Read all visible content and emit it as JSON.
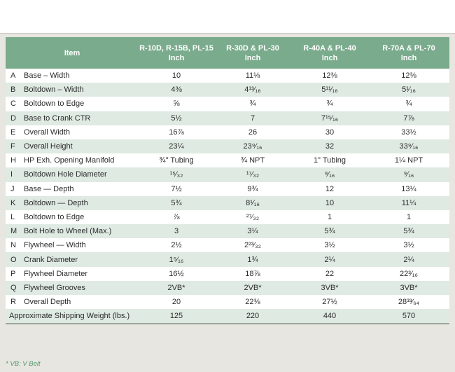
{
  "colors": {
    "header_green": "#7aab8c",
    "stripe_green": "#dfeae2",
    "panel_gray": "#e7e6e0",
    "footnote_green": "#55996e",
    "text_dark": "#2b2b2b",
    "table_bottom_border": "#9aa69c"
  },
  "footnote": "* VB: V Belt",
  "table": {
    "header": {
      "item_label": "Item",
      "columns": [
        {
          "models": "R-10D, R-15B, PL-15",
          "unit": "Inch"
        },
        {
          "models": "R-30D & PL-30",
          "unit": "Inch"
        },
        {
          "models": "R-40A & PL-40",
          "unit": "Inch"
        },
        {
          "models": "R-70A & PL-70",
          "unit": "Inch"
        }
      ]
    },
    "rows": [
      {
        "letter": "A",
        "item": "Base – Width",
        "values": [
          "10",
          "11⅛",
          "12⅜",
          "12⅜"
        ]
      },
      {
        "letter": "B",
        "item": "Boltdown – Width",
        "values": [
          "4⅜",
          "4¹³⁄₁₆",
          "5¹¹⁄₁₆",
          "5¹⁄₁₆"
        ]
      },
      {
        "letter": "C",
        "item": "Boltdown to Edge",
        "values": [
          "⅝",
          "¾",
          "¾",
          "¾"
        ]
      },
      {
        "letter": "D",
        "item": "Base to Crank CTR",
        "values": [
          "5½",
          "7",
          "7¹⁵⁄₁₆",
          "7⅞"
        ]
      },
      {
        "letter": "E",
        "item": "Overall Width",
        "values": [
          "16⅞",
          "26",
          "30",
          "33½"
        ]
      },
      {
        "letter": "F",
        "item": "Overall Height",
        "values": [
          "23¼",
          "23⁹⁄₁₆",
          "32",
          "33⁹⁄₁₆"
        ]
      },
      {
        "letter": "H",
        "item": "HP Exh. Opening Manifold",
        "values": [
          "¾\" Tubing",
          "¾ NPT",
          "1\" Tubing",
          "1¼ NPT"
        ]
      },
      {
        "letter": "I",
        "item": "Boltdown Hole Diameter",
        "values": [
          "¹⁵⁄₃₂",
          "¹⁷⁄₃₂",
          "⁹⁄₁₆",
          "⁹⁄₁₆"
        ]
      },
      {
        "letter": "J",
        "item": "Base — Depth",
        "values": [
          "7½",
          "9¾",
          "12",
          "13¼"
        ]
      },
      {
        "letter": "K",
        "item": "Boltdown — Depth",
        "values": [
          "5¾",
          "8¹⁄₁₆",
          "10",
          "11¼"
        ]
      },
      {
        "letter": "L",
        "item": "Boltdown to Edge",
        "values": [
          "⅞",
          "²⁷⁄₃₂",
          "1",
          "1"
        ]
      },
      {
        "letter": "M",
        "item": "Bolt Hole to Wheel (Max.)",
        "values": [
          "3",
          "3¼",
          "5¾",
          "5¾"
        ]
      },
      {
        "letter": "N",
        "item": "Flywheel — Width",
        "values": [
          "2½",
          "2²³⁄₃₂",
          "3½",
          "3½"
        ]
      },
      {
        "letter": "O",
        "item": "Crank Diameter",
        "values": [
          "1⁵⁄₁₆",
          "1¾",
          "2¼",
          "2¼"
        ]
      },
      {
        "letter": "P",
        "item": "Flywheel Diameter",
        "values": [
          "16½",
          "18⅞",
          "22",
          "22³⁄₁₆"
        ]
      },
      {
        "letter": "Q",
        "item": "Flywheel Grooves",
        "values": [
          "2VB*",
          "2VB*",
          "3VB*",
          "3VB*"
        ]
      },
      {
        "letter": "R",
        "item": "Overall Depth",
        "values": [
          "20",
          "22⅜",
          "27½",
          "28³³⁄₆₄"
        ]
      }
    ],
    "footer_row": {
      "label": "Approximate Shipping Weight (lbs.)",
      "values": [
        "125",
        "220",
        "440",
        "570"
      ]
    }
  }
}
